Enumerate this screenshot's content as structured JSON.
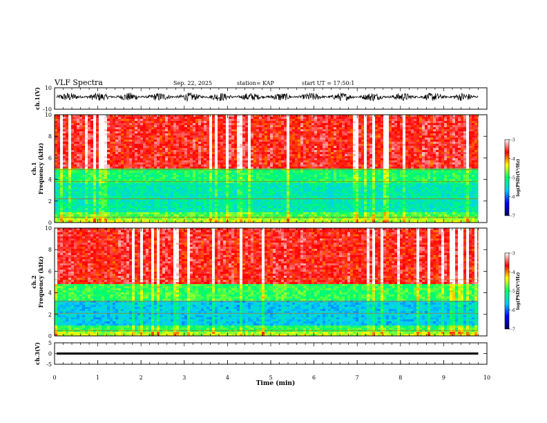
{
  "header": {
    "title": "VLF Spectra",
    "date": "Sep. 22, 2025",
    "station": "station= KAP",
    "start": "start UT = 17:50:1"
  },
  "chart_data": [
    {
      "type": "line",
      "panel": "waveform-ch1",
      "ylabel": "ch.1(V)",
      "ylim": [
        -10,
        10
      ],
      "yticks": [
        "10",
        "-10"
      ],
      "xlim": [
        0,
        10
      ],
      "x_end": 9.8,
      "y_mean": 1.5,
      "y_amplitude_range": [
        -2.5,
        5.5
      ],
      "color": "#000000"
    },
    {
      "type": "heatmap",
      "panel": "spectrogram-ch1",
      "ylabel": [
        "ch.1",
        "Frequency (kHz)"
      ],
      "ylim": [
        0,
        10
      ],
      "yticks": [
        "0",
        "2",
        "4",
        "6",
        "8",
        "10"
      ],
      "xlim": [
        0,
        10
      ],
      "x_end": 9.8,
      "colorbar": {
        "label": "log(PSD)(V²/Hz)",
        "range": [
          -7,
          -3
        ],
        "ticks": [
          "-3",
          "-4",
          "-5",
          "-6",
          "-7"
        ],
        "colormap": [
          "#000066",
          "#0000ff",
          "#00ccff",
          "#00ff66",
          "#ffff00",
          "#ff0000",
          "#ffffff"
        ]
      },
      "bands_khz": [
        {
          "from": 0,
          "to": 0.3,
          "level": -4.5
        },
        {
          "from": 0.3,
          "to": 1.0,
          "level": -4.8
        },
        {
          "from": 1.0,
          "to": 3.6,
          "level": -5.3
        },
        {
          "from": 3.6,
          "to": 5.0,
          "level": -5.0
        },
        {
          "from": 5.0,
          "to": 10,
          "level": -3.6
        }
      ],
      "lines_khz": [
        0.5,
        2.2,
        3.8,
        4.9
      ]
    },
    {
      "type": "heatmap",
      "panel": "spectrogram-ch2",
      "ylabel": [
        "ch.2",
        "Frequency (kHz)"
      ],
      "ylim": [
        0,
        10
      ],
      "yticks": [
        "0",
        "2",
        "4",
        "6",
        "8",
        "10"
      ],
      "xlim": [
        0,
        10
      ],
      "x_end": 9.8,
      "colorbar": {
        "label": "log(PSD)(V²/Hz)",
        "range": [
          -7,
          -3
        ],
        "ticks": [
          "-3",
          "-4",
          "-5",
          "-6",
          "-7"
        ],
        "colormap": [
          "#000066",
          "#0000ff",
          "#00ccff",
          "#00ff66",
          "#ffff00",
          "#ff0000",
          "#ffffff"
        ]
      },
      "bands_khz": [
        {
          "from": 0,
          "to": 0.3,
          "level": -4.5
        },
        {
          "from": 0.3,
          "to": 1.0,
          "level": -4.9
        },
        {
          "from": 1.0,
          "to": 3.2,
          "level": -5.6
        },
        {
          "from": 3.2,
          "to": 4.8,
          "level": -4.9
        },
        {
          "from": 4.8,
          "to": 10,
          "level": -3.6
        }
      ],
      "lines_khz": [
        0.5,
        2.1,
        3.2,
        5.2
      ]
    },
    {
      "type": "line",
      "panel": "waveform-ch3",
      "ylabel": "ch.3(V)",
      "ylim": [
        -5,
        5
      ],
      "yticks": [
        "5",
        "0",
        "-5"
      ],
      "xlim": [
        0,
        10
      ],
      "x_end": 9.8,
      "y_mean": 0,
      "y_amplitude_range": [
        -0.5,
        0.5
      ],
      "color": "#000000"
    }
  ],
  "xaxis": {
    "label": "Time (min)",
    "ticks": [
      "0",
      "1",
      "2",
      "3",
      "4",
      "5",
      "6",
      "7",
      "8",
      "9",
      "10"
    ],
    "range": [
      0,
      10
    ]
  }
}
